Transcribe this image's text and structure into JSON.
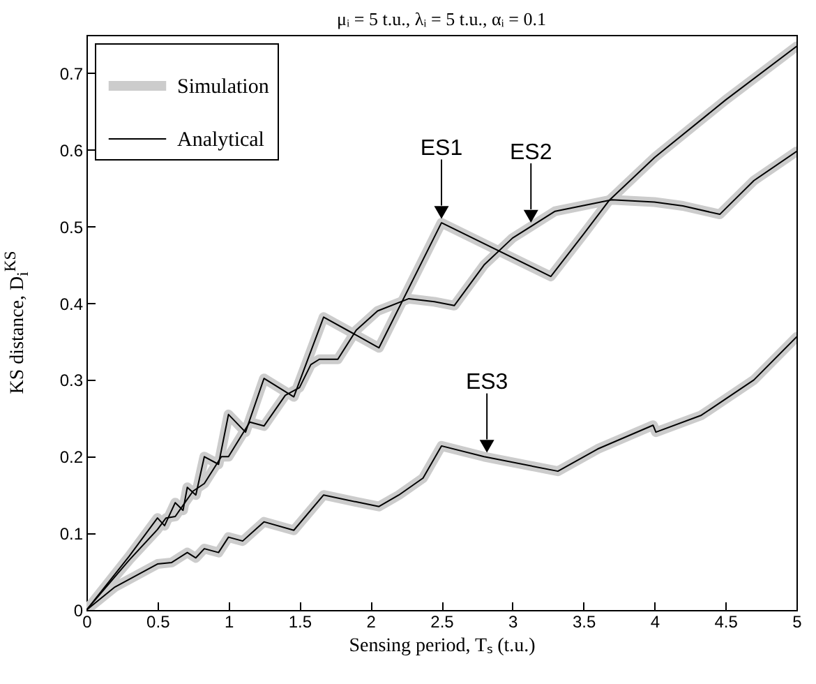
{
  "chart_data": {
    "type": "line",
    "title": "μᵢ = 5 t.u., λᵢ = 5 t.u., αᵢ = 0.1",
    "xlabel": "Sensing period, Tₛ (t.u.)",
    "ylabel": "KS distance, D$_{i}$$^{KS}$",
    "xlim": [
      0,
      5
    ],
    "ylim": [
      0,
      0.75
    ],
    "xticks": [
      0,
      0.5,
      1,
      1.5,
      2,
      2.5,
      3,
      3.5,
      4,
      4.5,
      5
    ],
    "yticks": [
      0,
      0.1,
      0.2,
      0.3,
      0.4,
      0.5,
      0.6,
      0.7
    ],
    "grid": false,
    "legend": "top left",
    "marker": "none",
    "line_style": "solid",
    "series": [
      {
        "name": "Simulation",
        "color": "#cccccc",
        "x": [
          0,
          0.3,
          0.5,
          0.55,
          0.625,
          0.68,
          0.71,
          0.77,
          0.83,
          0.93,
          1.0,
          1.12,
          1.25,
          1.46,
          1.67,
          2.06,
          2.5,
          3.27,
          3.5,
          3.68,
          4.0,
          4.5,
          5.0
        ],
        "values": [
          0,
          0.07,
          0.12,
          0.11,
          0.14,
          0.13,
          0.16,
          0.15,
          0.2,
          0.19,
          0.255,
          0.232,
          0.302,
          0.278,
          0.382,
          0.342,
          0.505,
          0.435,
          0.49,
          0.534,
          0.59,
          0.665,
          0.735
        ]
      },
      {
        "color": "#cccccc",
        "x": [
          0,
          0.3,
          0.5,
          0.56,
          0.625,
          0.75,
          0.83,
          0.95,
          1.0,
          1.15,
          1.25,
          1.4,
          1.5,
          1.58,
          1.64,
          1.77,
          1.9,
          2.05,
          2.27,
          2.45,
          2.59,
          2.8,
          3.0,
          3.3,
          3.7,
          4.0,
          4.2,
          4.46,
          4.7,
          5.0
        ],
        "values": [
          0,
          0.065,
          0.105,
          0.12,
          0.122,
          0.155,
          0.165,
          0.2,
          0.2,
          0.245,
          0.24,
          0.28,
          0.29,
          0.32,
          0.327,
          0.327,
          0.365,
          0.39,
          0.406,
          0.402,
          0.397,
          0.45,
          0.485,
          0.52,
          0.535,
          0.532,
          0.527,
          0.516,
          0.56,
          0.598
        ]
      },
      {
        "color": "#cccccc",
        "x": [
          0,
          0.2,
          0.4,
          0.5,
          0.6,
          0.71,
          0.77,
          0.83,
          0.93,
          1.0,
          1.1,
          1.25,
          1.46,
          1.67,
          1.9,
          2.06,
          2.2,
          2.37,
          2.5,
          2.8,
          3.32,
          3.6,
          3.99,
          4.01,
          4.33,
          4.7,
          5.0
        ],
        "values": [
          0,
          0.03,
          0.05,
          0.06,
          0.062,
          0.075,
          0.068,
          0.08,
          0.075,
          0.095,
          0.09,
          0.115,
          0.104,
          0.15,
          0.141,
          0.135,
          0.15,
          0.172,
          0.214,
          0.2,
          0.181,
          0.21,
          0.241,
          0.232,
          0.254,
          0.3,
          0.356
        ]
      },
      {
        "name": "Analytical",
        "color": "#000000",
        "x": [
          0,
          0.3,
          0.5,
          0.55,
          0.625,
          0.68,
          0.71,
          0.77,
          0.83,
          0.93,
          1.0,
          1.12,
          1.25,
          1.46,
          1.67,
          2.06,
          2.5,
          3.27,
          3.5,
          3.68,
          4.0,
          4.5,
          5.0
        ],
        "values": [
          0,
          0.07,
          0.12,
          0.11,
          0.14,
          0.13,
          0.16,
          0.15,
          0.2,
          0.19,
          0.255,
          0.232,
          0.302,
          0.278,
          0.382,
          0.342,
          0.505,
          0.435,
          0.49,
          0.534,
          0.59,
          0.665,
          0.735
        ]
      },
      {
        "color": "#000000",
        "x": [
          0,
          0.3,
          0.5,
          0.56,
          0.625,
          0.75,
          0.83,
          0.95,
          1.0,
          1.15,
          1.25,
          1.4,
          1.5,
          1.58,
          1.64,
          1.77,
          1.9,
          2.05,
          2.27,
          2.45,
          2.59,
          2.8,
          3.0,
          3.3,
          3.7,
          4.0,
          4.2,
          4.46,
          4.7,
          5.0
        ],
        "values": [
          0,
          0.065,
          0.105,
          0.12,
          0.122,
          0.155,
          0.165,
          0.2,
          0.2,
          0.245,
          0.24,
          0.28,
          0.29,
          0.32,
          0.327,
          0.327,
          0.365,
          0.39,
          0.406,
          0.402,
          0.397,
          0.45,
          0.485,
          0.52,
          0.535,
          0.532,
          0.527,
          0.516,
          0.56,
          0.598
        ]
      },
      {
        "color": "#000000",
        "x": [
          0,
          0.2,
          0.4,
          0.5,
          0.6,
          0.71,
          0.77,
          0.83,
          0.93,
          1.0,
          1.1,
          1.25,
          1.46,
          1.67,
          1.9,
          2.06,
          2.2,
          2.37,
          2.5,
          2.8,
          3.32,
          3.6,
          3.99,
          4.01,
          4.33,
          4.7,
          5.0
        ],
        "values": [
          0,
          0.03,
          0.05,
          0.06,
          0.062,
          0.075,
          0.068,
          0.08,
          0.075,
          0.095,
          0.09,
          0.115,
          0.104,
          0.15,
          0.141,
          0.135,
          0.15,
          0.172,
          0.214,
          0.2,
          0.181,
          0.21,
          0.241,
          0.232,
          0.254,
          0.3,
          0.356
        ]
      }
    ],
    "annotations": [
      {
        "text": "ES1",
        "x": 2.5,
        "y": 0.505
      },
      {
        "text": "ES2",
        "x": 3.13,
        "y": 0.5
      },
      {
        "text": "ES3",
        "x": 2.82,
        "y": 0.2
      }
    ]
  }
}
